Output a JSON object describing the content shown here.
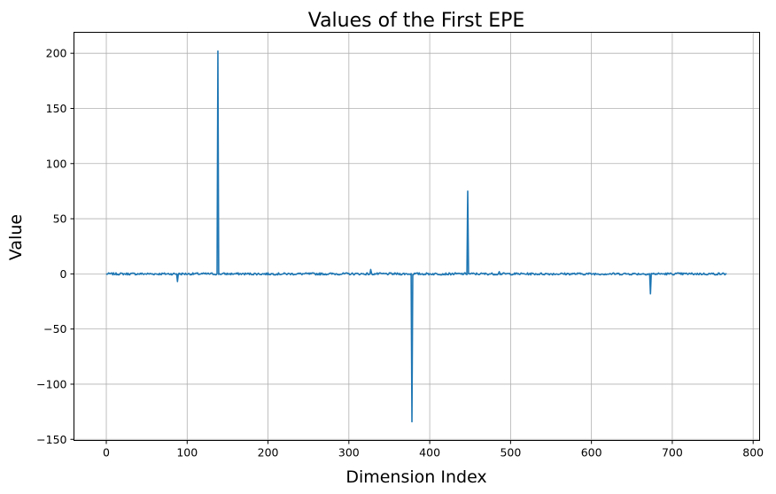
{
  "chart_data": {
    "type": "line",
    "title": "Values of the First EPE",
    "xlabel": "Dimension Index",
    "ylabel": "Value",
    "xlim": [
      -40,
      808
    ],
    "ylim": [
      -151,
      219
    ],
    "xticks": [
      0,
      100,
      200,
      300,
      400,
      500,
      600,
      700,
      800
    ],
    "yticks": [
      -150,
      -100,
      -50,
      0,
      50,
      100,
      150,
      200
    ],
    "grid": true,
    "line_color": "#1f77b4",
    "series": [
      {
        "dimension_count": 768,
        "baseline_noise_amplitude": 1.2,
        "spikes": [
          {
            "x": 88,
            "y": -7
          },
          {
            "x": 138,
            "y": 202
          },
          {
            "x": 327,
            "y": 4
          },
          {
            "x": 378,
            "y": -134
          },
          {
            "x": 447,
            "y": 75
          },
          {
            "x": 486,
            "y": 2
          },
          {
            "x": 673,
            "y": -18
          }
        ]
      }
    ]
  }
}
